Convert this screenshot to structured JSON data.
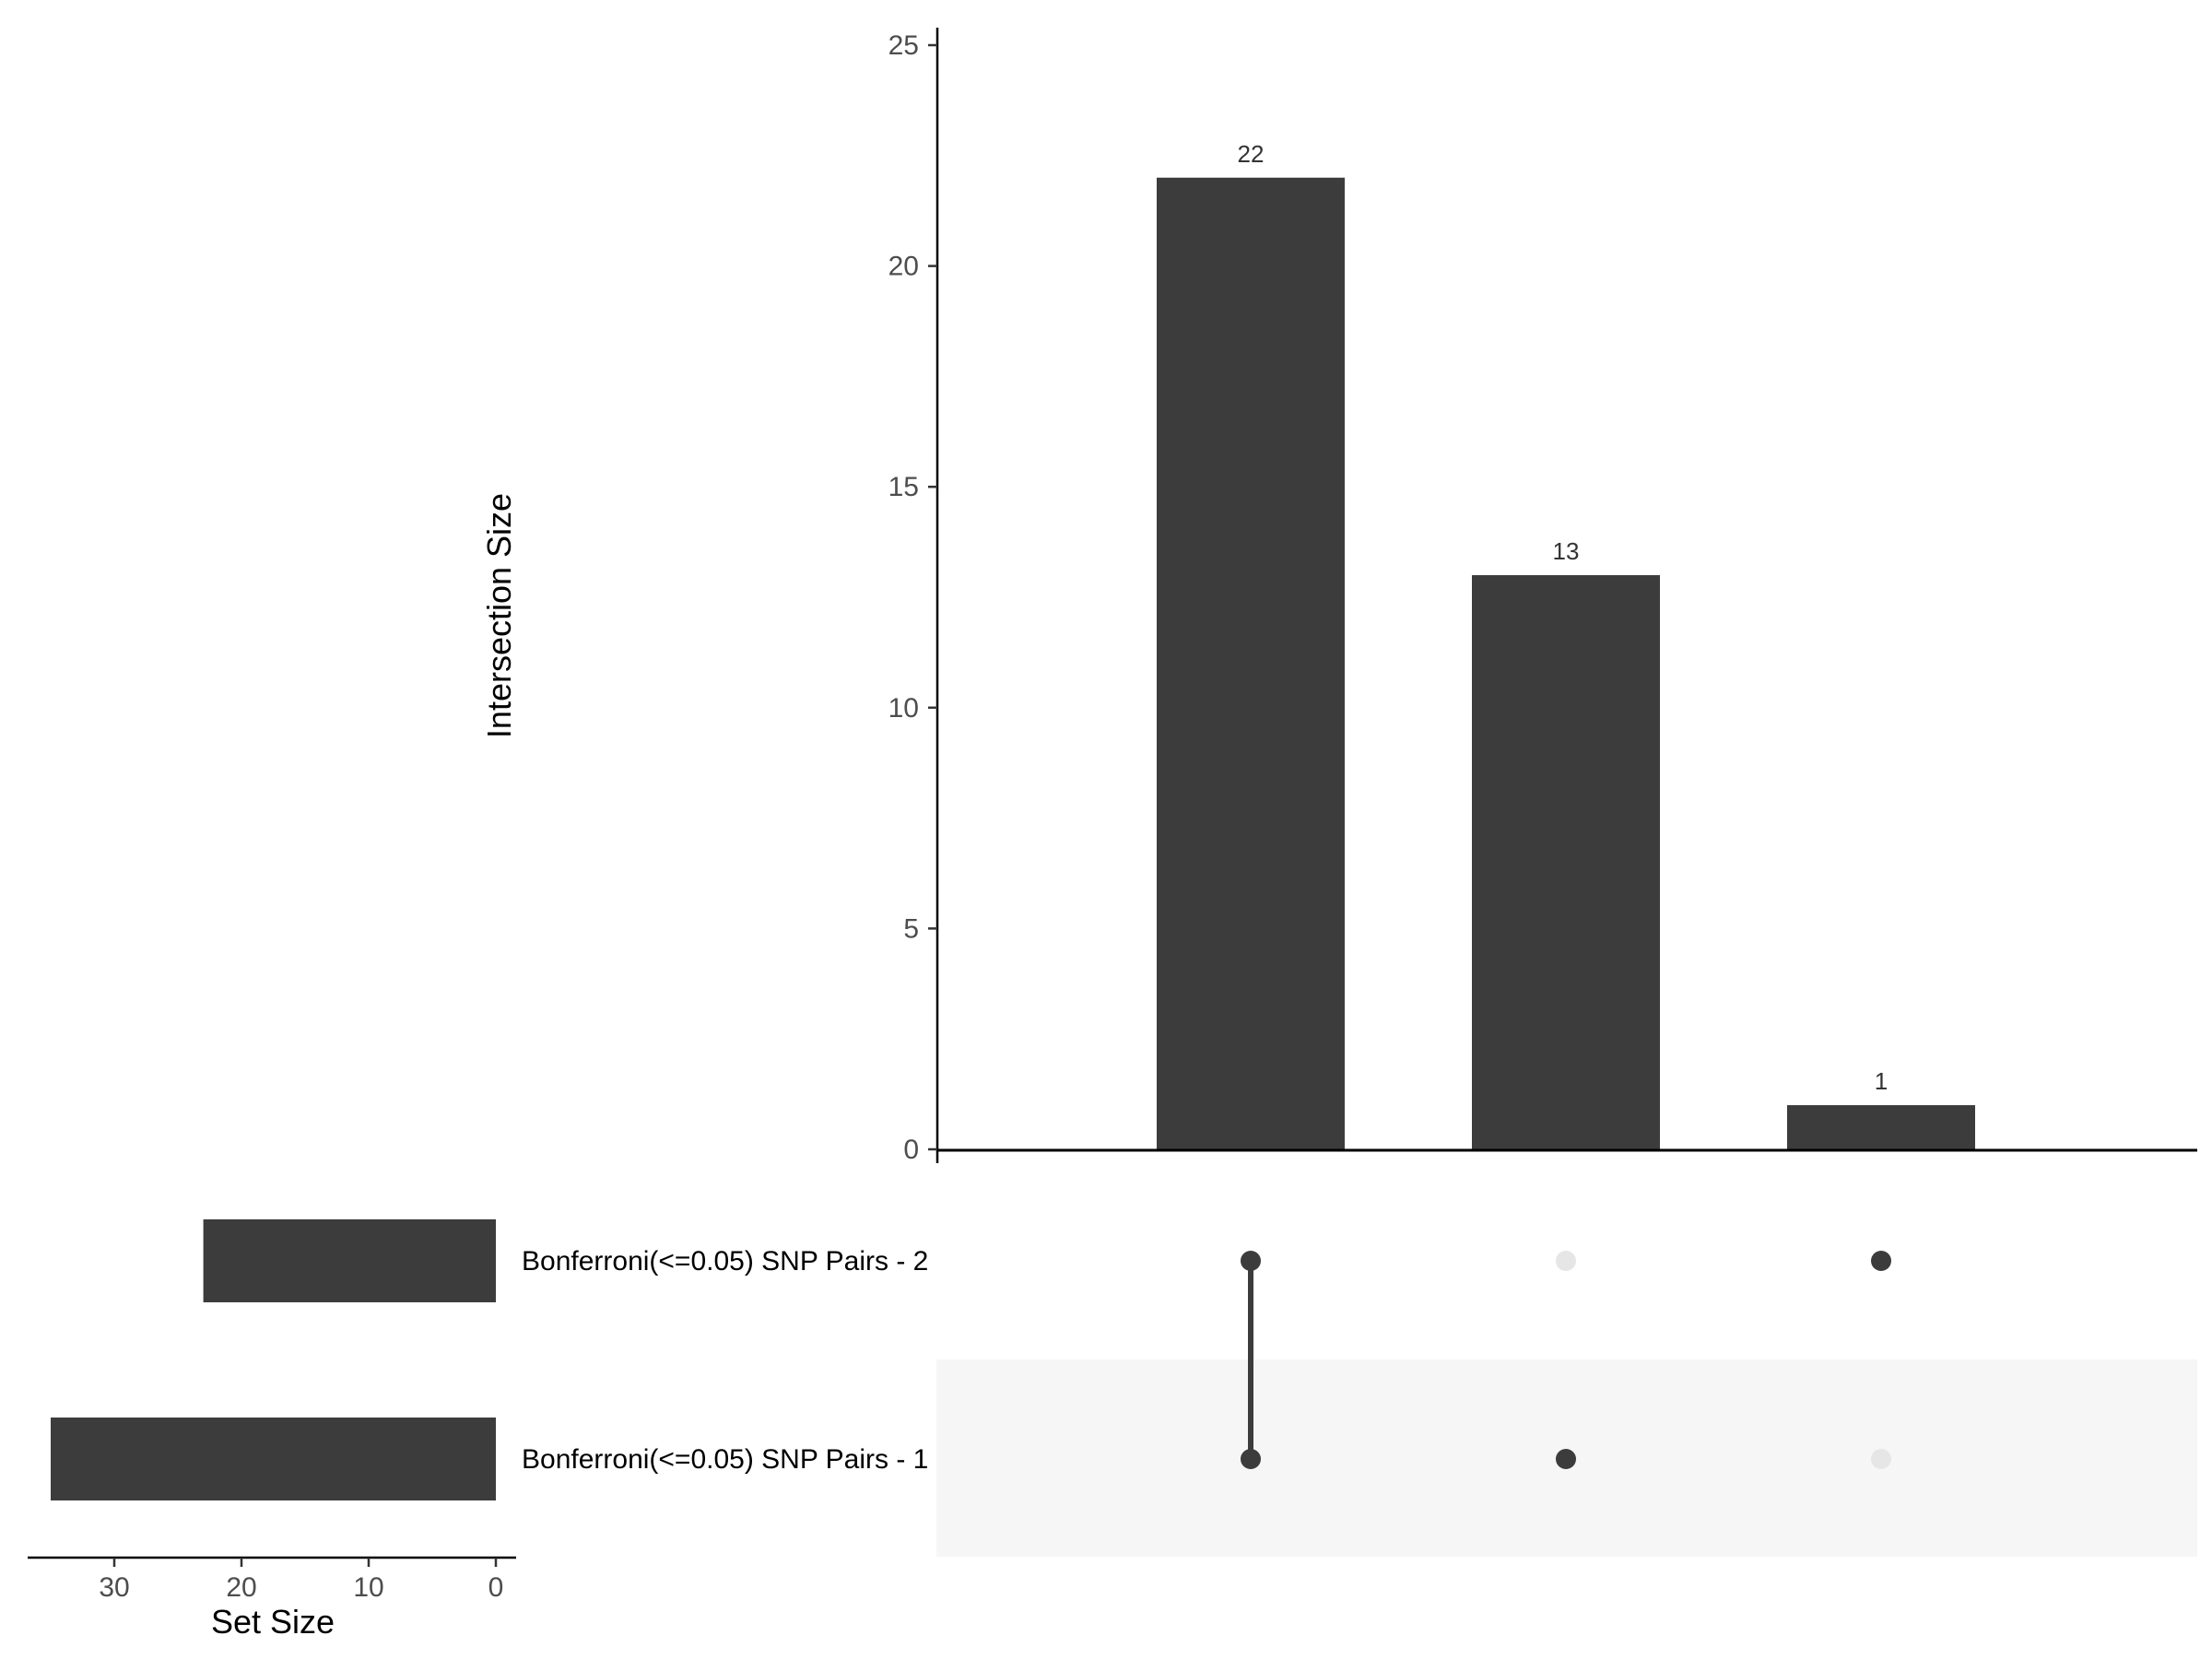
{
  "chart_data": {
    "type": "bar",
    "subtype": "upset",
    "intersections": {
      "ylabel": "Intersection Size",
      "ylim": [
        0,
        25
      ],
      "yticks": [
        0,
        5,
        10,
        15,
        20,
        25
      ],
      "values": [
        22,
        13,
        1
      ],
      "members": [
        [
          0,
          1
        ],
        [
          1
        ],
        [
          0
        ]
      ]
    },
    "sets": {
      "names": [
        "Bonferroni(<=0.05) SNP Pairs - 2",
        "Bonferroni(<=0.05) SNP Pairs - 1"
      ],
      "sizes": [
        23,
        35
      ],
      "xlabel": "Set Size",
      "xticks": [
        30,
        20,
        10,
        0
      ],
      "xlim": [
        36.5,
        0
      ]
    },
    "colors": {
      "bar": "#3c3c3c",
      "dot_active": "#3c3c3c",
      "dot_inactive": "#e6e6e6",
      "stripe": "#f6f6f6",
      "axis": "#000000",
      "tick": "#333333"
    }
  }
}
